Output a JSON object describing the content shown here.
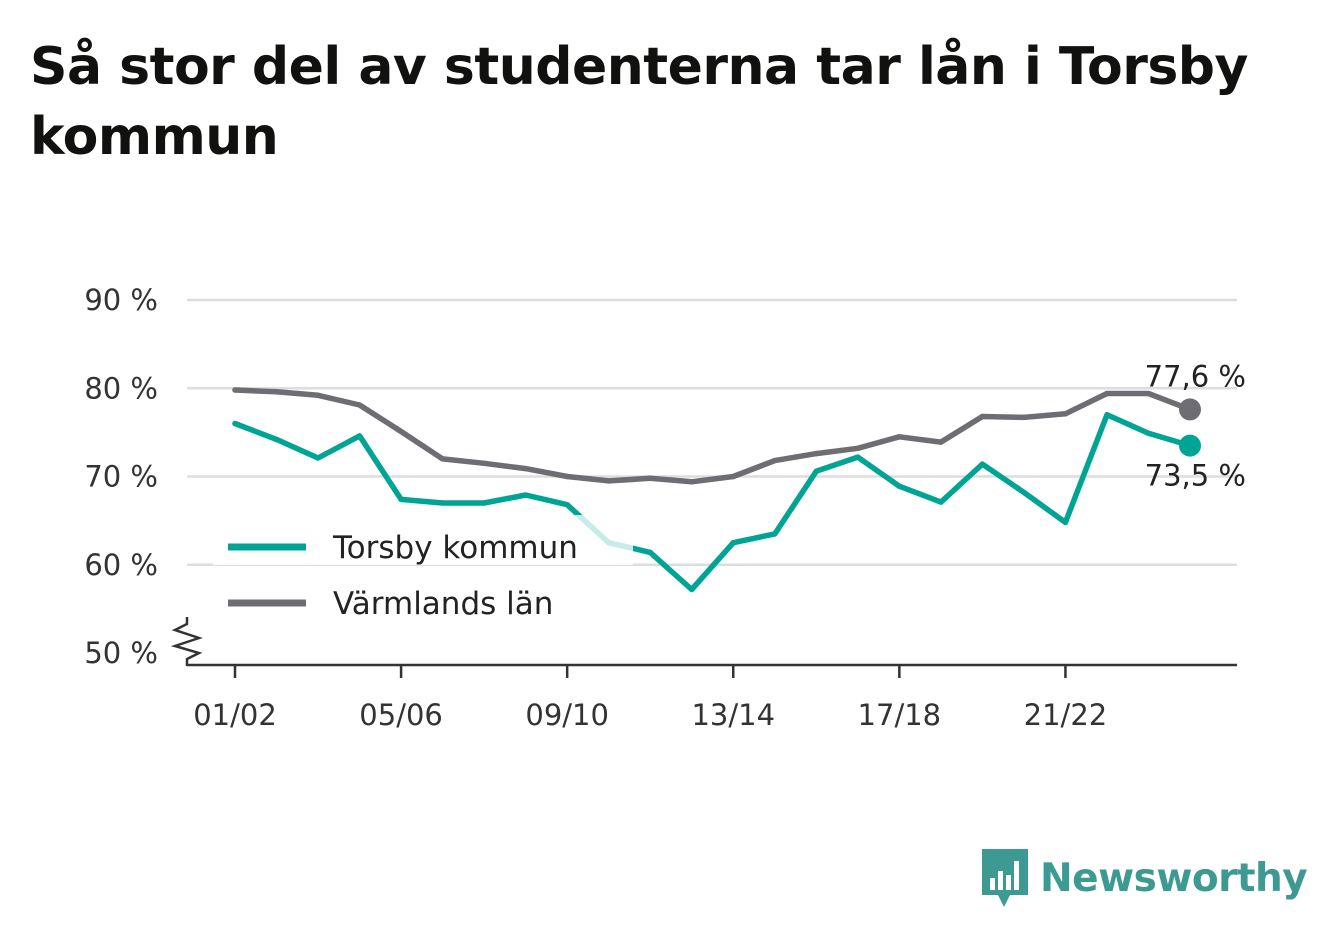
{
  "title": "Så stor del av studenterna tar lån i Torsby kommun",
  "brand": {
    "name": "Newsworthy",
    "color": "#3d9a93"
  },
  "chart_data": {
    "type": "line",
    "title": "Så stor del av studenterna tar lån i Torsby kommun",
    "xlabel": "",
    "ylabel": "",
    "x": [
      "01/02",
      "02/03",
      "03/04",
      "04/05",
      "05/06",
      "06/07",
      "07/08",
      "08/09",
      "09/10",
      "10/11",
      "11/12",
      "12/13",
      "13/14",
      "14/15",
      "15/16",
      "16/17",
      "17/18",
      "18/19",
      "19/20",
      "20/21",
      "21/22",
      "22/23",
      "23/24",
      "24/25"
    ],
    "x_tick_labels": [
      "01/02",
      "05/06",
      "09/10",
      "13/14",
      "17/18",
      "21/22"
    ],
    "y_ticks": [
      50,
      60,
      70,
      80,
      90
    ],
    "y_tick_labels": [
      "50 %",
      "60 %",
      "70 %",
      "80 %",
      "90 %"
    ],
    "ylim": [
      50,
      90
    ],
    "y_axis_break": true,
    "grid": true,
    "legend_position": "left",
    "series": [
      {
        "name": "Torsby kommun",
        "color": "#00a495",
        "values": [
          76.0,
          74.2,
          72.1,
          74.6,
          67.4,
          67.0,
          67.0,
          67.9,
          66.8,
          62.5,
          61.4,
          57.2,
          62.5,
          63.5,
          70.6,
          72.2,
          68.9,
          67.1,
          71.4,
          68.2,
          64.8,
          77.0,
          74.9,
          73.5
        ],
        "end_label": "73,5 %"
      },
      {
        "name": "Värmlands län",
        "color": "#6e6d73",
        "values": [
          79.8,
          79.6,
          79.2,
          78.1,
          75.1,
          72.0,
          71.5,
          70.9,
          70.0,
          69.5,
          69.8,
          69.4,
          70.0,
          71.8,
          72.6,
          73.2,
          74.5,
          73.9,
          76.8,
          76.7,
          77.1,
          79.4,
          79.4,
          77.6
        ],
        "end_label": "77,6 %"
      }
    ]
  }
}
